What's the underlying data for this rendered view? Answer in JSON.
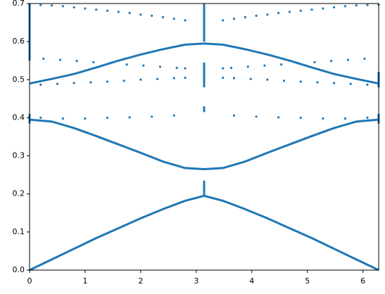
{
  "chart_data": {
    "type": "scatter",
    "color": "#1f77b4",
    "xlim": [
      0,
      6.283
    ],
    "ylim": [
      0,
      0.7
    ],
    "xticks": [
      0,
      1,
      2,
      3,
      4,
      5,
      6
    ],
    "yticks": [
      {
        "value": 0,
        "label": "0.0"
      },
      {
        "value": 0.1,
        "label": "0.1"
      },
      {
        "value": 0.2,
        "label": "0.2"
      },
      {
        "value": 0.3,
        "label": "0.3"
      },
      {
        "value": 0.4,
        "label": "0.4"
      },
      {
        "value": 0.5,
        "label": "0.5"
      },
      {
        "value": 0.6,
        "label": "0.6"
      },
      {
        "value": 0.7,
        "label": "0.7"
      }
    ],
    "series": [
      {
        "linestyle": "-",
        "x": [
          0,
          0.4,
          0.8,
          1.2,
          1.6,
          2.0,
          2.4,
          2.8,
          3.1416,
          3.48,
          3.88,
          4.28,
          4.68,
          5.08,
          5.48,
          5.88,
          6.283
        ],
        "y": [
          0,
          0.028,
          0.056,
          0.084,
          0.11,
          0.136,
          0.16,
          0.182,
          0.195,
          0.182,
          0.16,
          0.136,
          0.11,
          0.084,
          0.056,
          0.028,
          0
        ]
      },
      {
        "linestyle": "-",
        "x": [
          0,
          0.4,
          0.8,
          1.2,
          1.6,
          2.0,
          2.4,
          2.8,
          3.1416,
          3.48,
          3.88,
          4.28,
          4.68,
          5.08,
          5.48,
          5.88,
          6.283
        ],
        "y": [
          0.395,
          0.39,
          0.373,
          0.352,
          0.33,
          0.308,
          0.285,
          0.268,
          0.265,
          0.268,
          0.285,
          0.308,
          0.33,
          0.352,
          0.373,
          0.39,
          0.395
        ]
      },
      {
        "linestyle": "-",
        "x": [
          0,
          0.4,
          0.8,
          1.2,
          1.6,
          2.0,
          2.4,
          2.8,
          3.1416,
          3.48,
          3.88,
          4.28,
          4.68,
          5.08,
          5.48,
          5.88,
          6.283
        ],
        "y": [
          0.49,
          0.502,
          0.515,
          0.532,
          0.55,
          0.566,
          0.58,
          0.592,
          0.595,
          0.592,
          0.58,
          0.566,
          0.55,
          0.532,
          0.515,
          0.502,
          0.49
        ]
      },
      {
        "linestyle": "none",
        "x": [
          0,
          0.2,
          0.4,
          0.6,
          0.8,
          1.0,
          1.2,
          1.4,
          1.6,
          1.8,
          2.0,
          2.2,
          2.4,
          2.6,
          2.8,
          3.48,
          3.68,
          3.88,
          4.08,
          4.28,
          4.48,
          4.68,
          4.88,
          5.08,
          5.28,
          5.48,
          5.68,
          5.88,
          6.08,
          6.283
        ],
        "y": [
          0.697,
          0.696,
          0.695,
          0.693,
          0.69,
          0.687,
          0.684,
          0.681,
          0.678,
          0.675,
          0.671,
          0.668,
          0.664,
          0.66,
          0.656,
          0.656,
          0.66,
          0.664,
          0.668,
          0.671,
          0.675,
          0.678,
          0.681,
          0.684,
          0.687,
          0.69,
          0.693,
          0.695,
          0.696,
          0.697
        ]
      },
      {
        "linestyle": "none",
        "x": [
          0.2,
          0.6,
          1.0,
          1.4,
          1.8,
          2.2,
          2.6,
          3.68,
          4.08,
          4.48,
          4.88,
          5.28,
          5.68,
          6.08
        ],
        "y": [
          0.4,
          0.398,
          0.398,
          0.4,
          0.401,
          0.403,
          0.406,
          0.406,
          0.403,
          0.401,
          0.4,
          0.398,
          0.398,
          0.4
        ]
      },
      {
        "linestyle": "none",
        "x": [
          0.2,
          0.5,
          0.8,
          1.1,
          1.4,
          1.7,
          2.0,
          2.3,
          2.6,
          2.8,
          3.48,
          3.68,
          3.98,
          4.28,
          4.58,
          4.88,
          5.18,
          5.48,
          5.78,
          6.08
        ],
        "y": [
          0.487,
          0.489,
          0.491,
          0.493,
          0.495,
          0.497,
          0.5,
          0.502,
          0.504,
          0.505,
          0.505,
          0.504,
          0.502,
          0.5,
          0.497,
          0.495,
          0.493,
          0.491,
          0.489,
          0.487
        ]
      },
      {
        "linestyle": "none",
        "x": [
          0.25,
          0.55,
          0.85,
          1.15,
          1.45,
          1.75,
          2.05,
          2.35,
          2.65,
          2.8,
          3.48,
          3.63,
          3.93,
          4.23,
          4.53,
          4.83,
          5.13,
          5.43,
          5.73,
          6.03
        ],
        "y": [
          0.555,
          0.552,
          0.549,
          0.546,
          0.543,
          0.54,
          0.537,
          0.534,
          0.531,
          0.53,
          0.53,
          0.531,
          0.534,
          0.537,
          0.54,
          0.543,
          0.546,
          0.549,
          0.552,
          0.555
        ]
      },
      {
        "linestyle": "-",
        "x": [
          3.1416,
          3.1416
        ],
        "y": [
          0.197,
          0.235
        ]
      },
      {
        "linestyle": "-",
        "x": [
          3.1416,
          3.1416
        ],
        "y": [
          0.415,
          0.43
        ]
      },
      {
        "linestyle": "-",
        "x": [
          3.1416,
          3.1416
        ],
        "y": [
          0.48,
          0.545
        ]
      },
      {
        "linestyle": "-",
        "x": [
          3.1416,
          3.1416
        ],
        "y": [
          0.6,
          0.7
        ]
      },
      {
        "linestyle": "-",
        "x": [
          0,
          0
        ],
        "y": [
          0.385,
          0.41
        ]
      },
      {
        "linestyle": "-",
        "x": [
          0,
          0
        ],
        "y": [
          0.55,
          0.7
        ]
      },
      {
        "linestyle": "-",
        "x": [
          6.283,
          6.283
        ],
        "y": [
          0.385,
          0.41
        ]
      },
      {
        "linestyle": "-",
        "x": [
          6.283,
          6.283
        ],
        "y": [
          0.48,
          0.52
        ]
      }
    ]
  }
}
